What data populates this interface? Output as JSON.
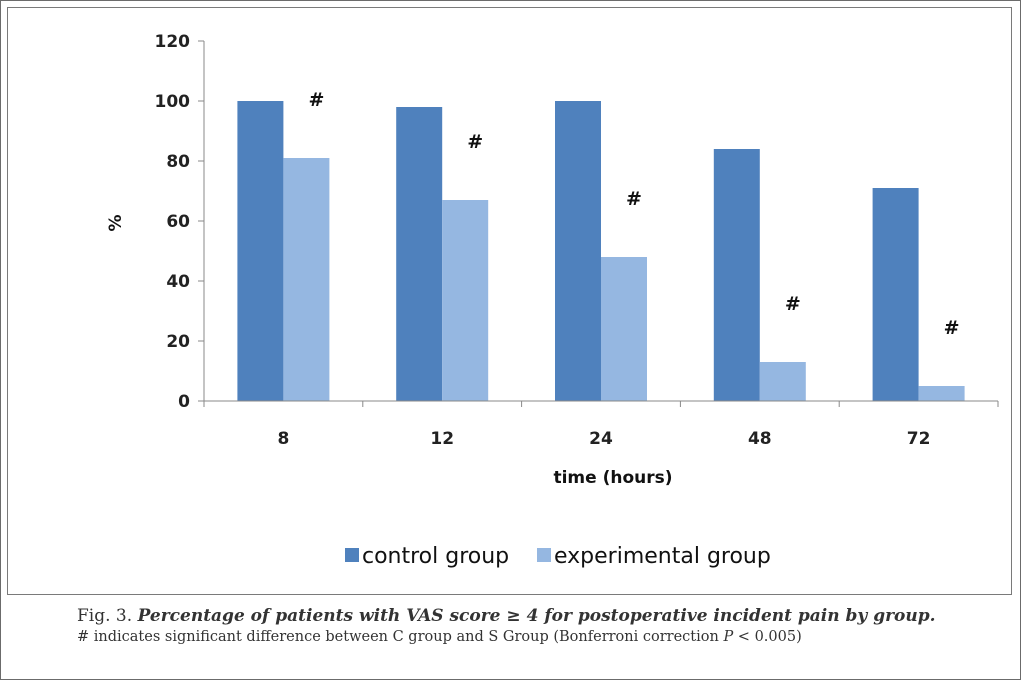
{
  "chart_data": {
    "type": "bar",
    "categories": [
      "8",
      "12",
      "24",
      "48",
      "72"
    ],
    "series": [
      {
        "name": "control group",
        "color": "#4f81bd",
        "values": [
          100,
          98,
          100,
          84,
          71
        ]
      },
      {
        "name": "experimental group",
        "color": "#95b7e1",
        "values": [
          81,
          67,
          48,
          13,
          5
        ]
      }
    ],
    "annotations": [
      "#",
      "#",
      "#",
      "#",
      "#"
    ],
    "xlabel": "time (hours)",
    "ylabel": "%",
    "ylim": [
      0,
      120
    ],
    "yticks": [
      "0",
      "20",
      "40",
      "60",
      "80",
      "100",
      "120"
    ],
    "grid": false,
    "legend_position": "bottom"
  },
  "caption": {
    "fig_label": "Fig. 3.",
    "title": "Percentage of  patients with VAS score ≥ 4 for postoperative incident pain by group.",
    "note_prefix": "# indicates significant difference between C group and S Group (Bonferroni correction ",
    "note_var": "P",
    "note_suffix": " < 0.005)"
  }
}
